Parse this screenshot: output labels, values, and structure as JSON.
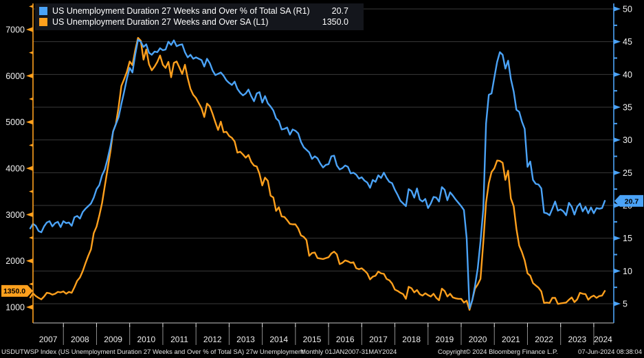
{
  "legend": {
    "series": [
      {
        "label": "US Unemployment Duration 27 Weeks and Over % of Total SA  (R1)",
        "value": "20.7",
        "color": "#4ba3f7"
      },
      {
        "label": "US Unemployment Duration 27 Weeks and Over SA (L1)",
        "value": "1350.0",
        "color": "#ffa01d"
      }
    ]
  },
  "footer": {
    "description": "USDUTWSP Index (US Unemployment Duration 27 Weeks and Over % of Total SA) 27w Unemployment",
    "period": "Monthly 01JAN2007-31MAY2024",
    "copyright": "Copyright© 2024 Bloomberg Finance L.P.",
    "datetime": "07-Jun-2024 08:38:04"
  },
  "chart_data": {
    "type": "line",
    "frequency": "monthly",
    "start": "2007-01",
    "end": "2024-05",
    "x_years": [
      2007,
      2008,
      2009,
      2010,
      2011,
      2012,
      2013,
      2014,
      2015,
      2016,
      2017,
      2018,
      2019,
      2020,
      2021,
      2022,
      2023,
      2024
    ],
    "colors": {
      "blue": "#4ba3f7",
      "orange": "#ffa01d",
      "grid": "#3a3a3a",
      "frame": "#a0a0a0",
      "separator": "#8f8f8f",
      "year_tick": "#e0e0e0"
    },
    "left_axis": {
      "ticks": [
        1000,
        2000,
        3000,
        4000,
        5000,
        6000,
        7000
      ],
      "color": "#ffa01d",
      "last_value": 1350.0,
      "position": "left"
    },
    "right_axis": {
      "ticks": [
        5,
        10,
        15,
        20,
        25,
        30,
        35,
        40,
        45,
        50
      ],
      "color": "#4ba3f7",
      "last_value": 20.7,
      "position": "right"
    },
    "series": [
      {
        "name": "US Unemployment Duration 27 Weeks and Over SA",
        "axis": "left",
        "color": "#ffa01d",
        "values": [
          1210,
          1300,
          1240,
          1200,
          1170,
          1230,
          1310,
          1300,
          1270,
          1290,
          1330,
          1320,
          1340,
          1290,
          1330,
          1310,
          1430,
          1570,
          1640,
          1780,
          1950,
          2110,
          2250,
          2600,
          2740,
          2980,
          3250,
          3620,
          3980,
          4360,
          4800,
          4960,
          5330,
          5780,
          5930,
          6090,
          6310,
          6230,
          6550,
          6820,
          6760,
          6350,
          6570,
          6250,
          6120,
          6200,
          6300,
          6440,
          6240,
          6170,
          6300,
          5970,
          6280,
          6310,
          6180,
          6040,
          6240,
          5950,
          5720,
          5590,
          5520,
          5410,
          5300,
          5110,
          5400,
          5340,
          5180,
          5000,
          4830,
          5010,
          4780,
          4790,
          4700,
          4660,
          4580,
          4340,
          4360,
          4300,
          4230,
          4290,
          4140,
          4060,
          4040,
          3880,
          3630,
          3800,
          3730,
          3410,
          3370,
          3080,
          3160,
          2960,
          2950,
          2880,
          2800,
          2790,
          2790,
          2700,
          2550,
          2520,
          2450,
          2110,
          2170,
          2180,
          2060,
          2050,
          2040,
          2060,
          2080,
          2160,
          2200,
          2140,
          1930,
          1960,
          2010,
          1990,
          1960,
          1970,
          1840,
          1820,
          1840,
          1790,
          1730,
          1600,
          1660,
          1680,
          1770,
          1730,
          1720,
          1610,
          1580,
          1510,
          1380,
          1350,
          1310,
          1280,
          1180,
          1440,
          1410,
          1320,
          1370,
          1280,
          1250,
          1300,
          1260,
          1230,
          1290,
          1200,
          1150,
          1400,
          1350,
          1230,
          1290,
          1210,
          1190,
          1180,
          1180,
          1100,
          1140,
          940,
          1150,
          1400,
          1490,
          1610,
          2400,
          3260,
          3680,
          3920,
          4000,
          4170,
          4160,
          4120,
          3750,
          3950,
          3350,
          3180,
          2690,
          2330,
          2190,
          2010,
          1730,
          1680,
          1520,
          1470,
          1420,
          1340,
          1090,
          1100,
          1090,
          1200,
          1200,
          1070,
          1080,
          1090,
          1100,
          1160,
          1210,
          1110,
          1170,
          1310,
          1290,
          1280,
          1160,
          1220,
          1250,
          1200,
          1240,
          1250,
          1350
        ]
      },
      {
        "name": "US Unemployment Duration 27 Weeks and Over % of Total SA",
        "axis": "right",
        "color": "#4ba3f7",
        "values": [
          16.5,
          17.2,
          16.9,
          16.1,
          15.9,
          16.8,
          17.4,
          17.6,
          16.8,
          17.3,
          17.5,
          16.7,
          17.6,
          17.3,
          17.4,
          16.9,
          18.2,
          18.4,
          18.0,
          19.0,
          19.5,
          19.9,
          20.3,
          21.2,
          22.5,
          23.1,
          24.6,
          25.5,
          27.1,
          29.0,
          31.3,
          32.4,
          33.5,
          35.5,
          37.4,
          39.4,
          41.0,
          40.3,
          43.0,
          45.3,
          45.0,
          44.2,
          44.6,
          43.3,
          43.0,
          43.5,
          43.4,
          44.0,
          43.7,
          43.8,
          45.0,
          44.5,
          45.2,
          44.3,
          44.5,
          44.6,
          43.4,
          42.6,
          43.0,
          42.4,
          42.6,
          42.4,
          42.2,
          41.2,
          42.4,
          41.7,
          40.6,
          39.9,
          40.1,
          40.3,
          39.8,
          39.1,
          38.7,
          38.4,
          38.9,
          37.8,
          37.2,
          36.8,
          37.1,
          37.7,
          36.7,
          35.9,
          37.1,
          37.3,
          35.7,
          36.7,
          35.6,
          35.1,
          34.5,
          33.3,
          32.9,
          31.6,
          31.7,
          31.9,
          30.8,
          31.6,
          31.4,
          31.0,
          29.7,
          28.9,
          28.5,
          28.1,
          27.1,
          27.5,
          27.2,
          26.4,
          25.8,
          26.2,
          26.3,
          27.5,
          27.6,
          26.1,
          25.5,
          25.7,
          26.1,
          25.9,
          24.9,
          25.0,
          24.7,
          24.1,
          24.3,
          23.8,
          23.5,
          22.7,
          23.9,
          23.6,
          24.6,
          24.2,
          25.0,
          24.2,
          23.6,
          23.4,
          22.4,
          21.6,
          20.7,
          20.3,
          19.9,
          22.5,
          22.2,
          21.2,
          22.6,
          20.9,
          20.6,
          21.0,
          19.6,
          20.3,
          21.3,
          21.2,
          20.6,
          22.8,
          22.4,
          20.8,
          22.0,
          21.5,
          20.9,
          20.4,
          19.9,
          19.3,
          15.0,
          4.3,
          5.5,
          7.7,
          10.4,
          14.5,
          19.5,
          32.5,
          36.9,
          37.1,
          39.5,
          41.9,
          43.4,
          43.0,
          40.9,
          42.1,
          39.3,
          37.4,
          34.6,
          34.3,
          32.8,
          31.7,
          25.9,
          26.7,
          23.9,
          23.3,
          23.2,
          22.6,
          18.9,
          18.8,
          18.5,
          19.5,
          20.6,
          19.2,
          19.4,
          19.1,
          18.5,
          20.4,
          19.8,
          18.6,
          19.8,
          20.3,
          19.1,
          19.8,
          18.8,
          19.7,
          18.8,
          19.6,
          19.5,
          19.6,
          20.7
        ]
      }
    ]
  }
}
